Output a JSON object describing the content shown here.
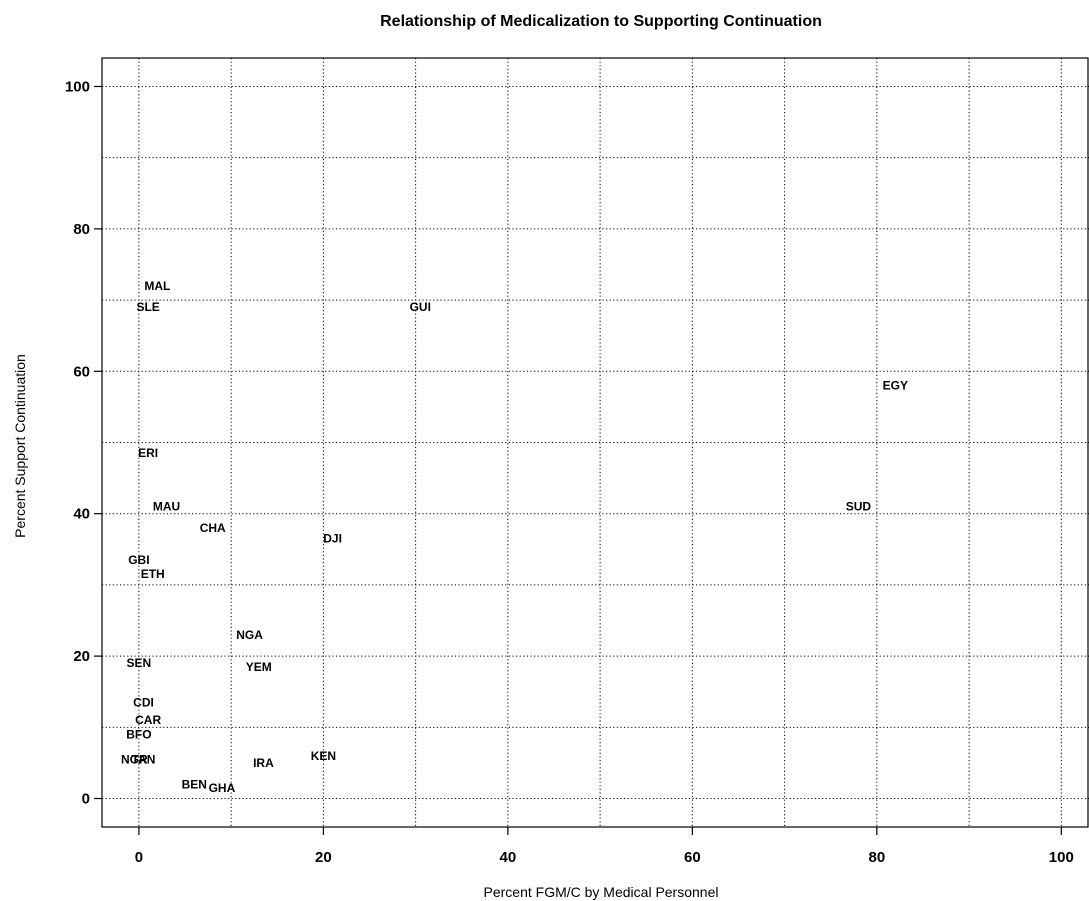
{
  "chart_data": {
    "type": "scatter",
    "title": "Relationship of Medicalization to Supporting Continuation",
    "xlabel": "Percent FGM/C by Medical Personnel",
    "ylabel": "Percent Support Continuation",
    "xlim": [
      -4,
      103
    ],
    "ylim": [
      -4,
      104
    ],
    "xticks": [
      0,
      20,
      40,
      60,
      80,
      100
    ],
    "yticks": [
      0,
      20,
      40,
      60,
      80,
      100
    ],
    "xgrid": [
      0,
      10,
      20,
      30,
      40,
      50,
      60,
      70,
      80,
      90,
      100
    ],
    "ygrid": [
      0,
      10,
      20,
      30,
      40,
      50,
      60,
      70,
      80,
      90,
      100
    ],
    "grid": true,
    "marker": "text",
    "points": [
      {
        "label": "MAL",
        "x": 2,
        "y": 72
      },
      {
        "label": "SLE",
        "x": 1,
        "y": 69
      },
      {
        "label": "GUI",
        "x": 30.5,
        "y": 69
      },
      {
        "label": "EGY",
        "x": 82,
        "y": 58
      },
      {
        "label": "ERI",
        "x": 1,
        "y": 48.5
      },
      {
        "label": "MAU",
        "x": 3,
        "y": 41
      },
      {
        "label": "SUD",
        "x": 78,
        "y": 41
      },
      {
        "label": "CHA",
        "x": 8,
        "y": 38
      },
      {
        "label": "DJI",
        "x": 21,
        "y": 36.5
      },
      {
        "label": "GBI",
        "x": 0,
        "y": 33.5
      },
      {
        "label": "ETH",
        "x": 1.5,
        "y": 31.5
      },
      {
        "label": "NGA",
        "x": 12,
        "y": 23
      },
      {
        "label": "SEN",
        "x": 0,
        "y": 19
      },
      {
        "label": "YEM",
        "x": 13,
        "y": 18.5
      },
      {
        "label": "CDI",
        "x": 0.5,
        "y": 13.5
      },
      {
        "label": "CAR",
        "x": 1,
        "y": 11
      },
      {
        "label": "BFO",
        "x": 0,
        "y": 9
      },
      {
        "label": "NGR",
        "x": -0.5,
        "y": 5.5
      },
      {
        "label": "TAN",
        "x": 0.5,
        "y": 5.5
      },
      {
        "label": "KEN",
        "x": 20,
        "y": 6
      },
      {
        "label": "IRA",
        "x": 13.5,
        "y": 5
      },
      {
        "label": "BEN",
        "x": 6,
        "y": 2
      },
      {
        "label": "GHA",
        "x": 9,
        "y": 1.5
      }
    ]
  }
}
